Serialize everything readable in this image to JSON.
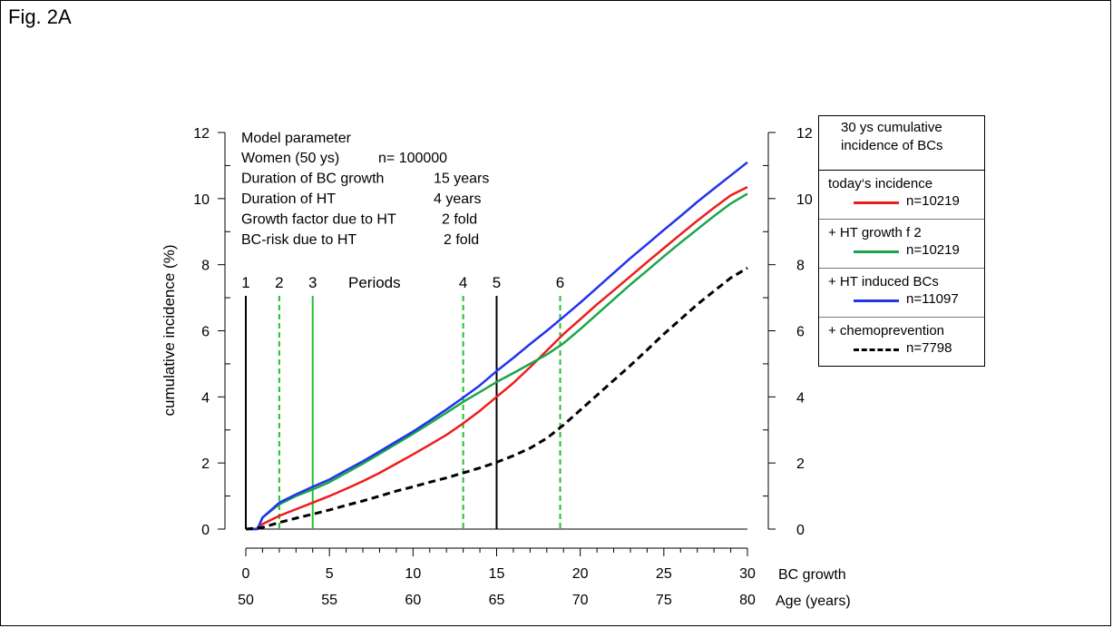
{
  "figure_label": "Fig. 2A",
  "model_parameters": {
    "heading": "Model parameter",
    "lines": [
      {
        "label": "Women (50 ys)",
        "value": "n= 100000"
      },
      {
        "label": "Duration of BC growth",
        "value": "15 years"
      },
      {
        "label": "Duration of HT",
        "value": "4 years"
      },
      {
        "label": "Growth factor due to HT",
        "value": "2 fold"
      },
      {
        "label": "BC-risk due to HT",
        "value": "2 fold"
      }
    ]
  },
  "legend": {
    "title_line1": "30 ys cumulative",
    "title_line2": "incidence of BCs",
    "entries": [
      {
        "label": "today‘s incidence",
        "n": "n=10219"
      },
      {
        "label": "+ HT growth f 2",
        "n": "n=10219"
      },
      {
        "label": "+ HT induced BCs",
        "n": "n=11097"
      },
      {
        "label": "+ chemoprevention",
        "n": "n=7798"
      }
    ]
  },
  "chart_data": {
    "type": "line",
    "ylabel": "cumulative  incidence  (%)",
    "xlabel": "BC growth",
    "xlabel2": "Age (years)",
    "xlim": [
      0,
      30
    ],
    "ylim": [
      0,
      12
    ],
    "x_ticks": [
      0,
      5,
      10,
      15,
      20,
      25,
      30
    ],
    "x_ticks_age": [
      "50",
      "55",
      "60",
      "65",
      "70",
      "75",
      "80"
    ],
    "y_ticks": [
      0,
      2,
      4,
      6,
      8,
      10,
      12
    ],
    "right_y_ticks": [
      0,
      2,
      4,
      6,
      8,
      10,
      12
    ],
    "grid": false,
    "legend_position": "right",
    "periods_label": "Periods",
    "periods": [
      {
        "label": "1",
        "x": 0,
        "style": "solid",
        "color": "#000000"
      },
      {
        "label": "2",
        "x": 2,
        "style": "dashed",
        "color": "#22c02e"
      },
      {
        "label": "3",
        "x": 4,
        "style": "solid",
        "color": "#22c02e"
      },
      {
        "label": "4",
        "x": 13,
        "style": "dashed",
        "color": "#22c02e"
      },
      {
        "label": "5",
        "x": 15,
        "style": "solid",
        "color": "#000000"
      },
      {
        "label": "6",
        "x": 18.8,
        "style": "dashed",
        "color": "#22c02e"
      }
    ],
    "series": [
      {
        "name": "today‘s incidence",
        "color": "#ee1c1c",
        "dash": false,
        "x": [
          0,
          0.6,
          1,
          2,
          3,
          4,
          5,
          6,
          7,
          8,
          9,
          10,
          11,
          12,
          13,
          14,
          15,
          16,
          17,
          18,
          19,
          20,
          21,
          22,
          23,
          24,
          25,
          26,
          27,
          28,
          29,
          30
        ],
        "y": [
          0,
          0,
          0.15,
          0.4,
          0.6,
          0.8,
          1.0,
          1.22,
          1.45,
          1.7,
          1.98,
          2.26,
          2.55,
          2.85,
          3.2,
          3.58,
          4.0,
          4.42,
          4.9,
          5.4,
          5.9,
          6.35,
          6.8,
          7.22,
          7.65,
          8.08,
          8.5,
          8.92,
          9.33,
          9.72,
          10.1,
          10.35
        ]
      },
      {
        "name": "+ HT growth f 2",
        "color": "#1aa74a",
        "dash": false,
        "x": [
          0,
          0.7,
          1,
          2,
          3,
          4,
          5,
          6,
          7,
          8,
          9,
          10,
          11,
          12,
          13,
          14,
          15,
          16,
          17,
          18,
          19,
          20,
          21,
          22,
          23,
          24,
          25,
          26,
          27,
          28,
          29,
          30
        ],
        "y": [
          0,
          0,
          0.35,
          0.75,
          1.0,
          1.2,
          1.42,
          1.7,
          1.98,
          2.28,
          2.58,
          2.88,
          3.2,
          3.52,
          3.85,
          4.15,
          4.45,
          4.72,
          5.0,
          5.28,
          5.62,
          6.05,
          6.5,
          6.95,
          7.4,
          7.82,
          8.25,
          8.67,
          9.07,
          9.47,
          9.85,
          10.15
        ]
      },
      {
        "name": "+ HT induced BCs",
        "color": "#2233ee",
        "dash": false,
        "x": [
          0,
          0.7,
          1,
          2,
          3,
          4,
          5,
          6,
          7,
          8,
          9,
          10,
          11,
          12,
          13,
          14,
          15,
          16,
          17,
          18,
          19,
          20,
          21,
          22,
          23,
          24,
          25,
          26,
          27,
          28,
          29,
          30
        ],
        "y": [
          0,
          0,
          0.35,
          0.8,
          1.05,
          1.28,
          1.5,
          1.78,
          2.05,
          2.35,
          2.65,
          2.95,
          3.28,
          3.62,
          3.98,
          4.35,
          4.78,
          5.18,
          5.6,
          6.0,
          6.42,
          6.85,
          7.3,
          7.75,
          8.2,
          8.62,
          9.05,
          9.47,
          9.9,
          10.3,
          10.7,
          11.1
        ]
      },
      {
        "name": "+ chemoprevention",
        "color": "#000000",
        "dash": true,
        "x": [
          0,
          1,
          2,
          3,
          4,
          5,
          6,
          7,
          8,
          9,
          10,
          11,
          12,
          13,
          14,
          15,
          16,
          17,
          18,
          19,
          20,
          21,
          22,
          23,
          24,
          25,
          26,
          27,
          28,
          29,
          30
        ],
        "y": [
          0,
          0.05,
          0.2,
          0.33,
          0.45,
          0.58,
          0.72,
          0.85,
          1.0,
          1.15,
          1.28,
          1.42,
          1.55,
          1.7,
          1.85,
          2.02,
          2.22,
          2.45,
          2.75,
          3.15,
          3.6,
          4.05,
          4.5,
          4.95,
          5.42,
          5.9,
          6.35,
          6.8,
          7.2,
          7.6,
          7.9
        ]
      }
    ]
  }
}
